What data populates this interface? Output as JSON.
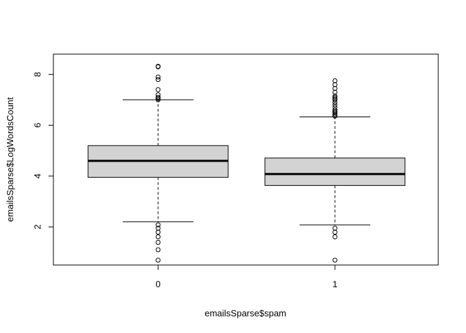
{
  "chart_data": {
    "type": "boxplot",
    "title": "",
    "xlabel": "emailsSparse$spam",
    "ylabel": "emailsSparse$LogWordsCount",
    "categories": [
      "0",
      "1"
    ],
    "ylim": [
      0.5,
      8.8
    ],
    "yticks": [
      2,
      4,
      6,
      8
    ],
    "box_fill": "#d3d3d3",
    "boxes": [
      {
        "category": "0",
        "whisker_low": 2.2,
        "q1": 3.95,
        "median": 4.6,
        "q3": 5.2,
        "whisker_high": 7.0,
        "outliers": [
          0.69,
          1.1,
          1.39,
          1.61,
          1.79,
          1.95,
          2.08,
          7.0,
          7.05,
          7.1,
          7.2,
          7.4,
          7.8,
          7.9,
          8.3,
          8.32
        ]
      },
      {
        "category": "1",
        "whisker_low": 2.08,
        "q1": 3.63,
        "median": 4.08,
        "q3": 4.71,
        "whisker_high": 6.33,
        "outliers": [
          0.69,
          1.61,
          1.79,
          1.95,
          6.36,
          6.4,
          6.45,
          6.5,
          6.55,
          6.6,
          6.7,
          6.8,
          6.9,
          7.0,
          7.05,
          7.1,
          7.15,
          7.3,
          7.45,
          7.6,
          7.75
        ]
      }
    ]
  }
}
